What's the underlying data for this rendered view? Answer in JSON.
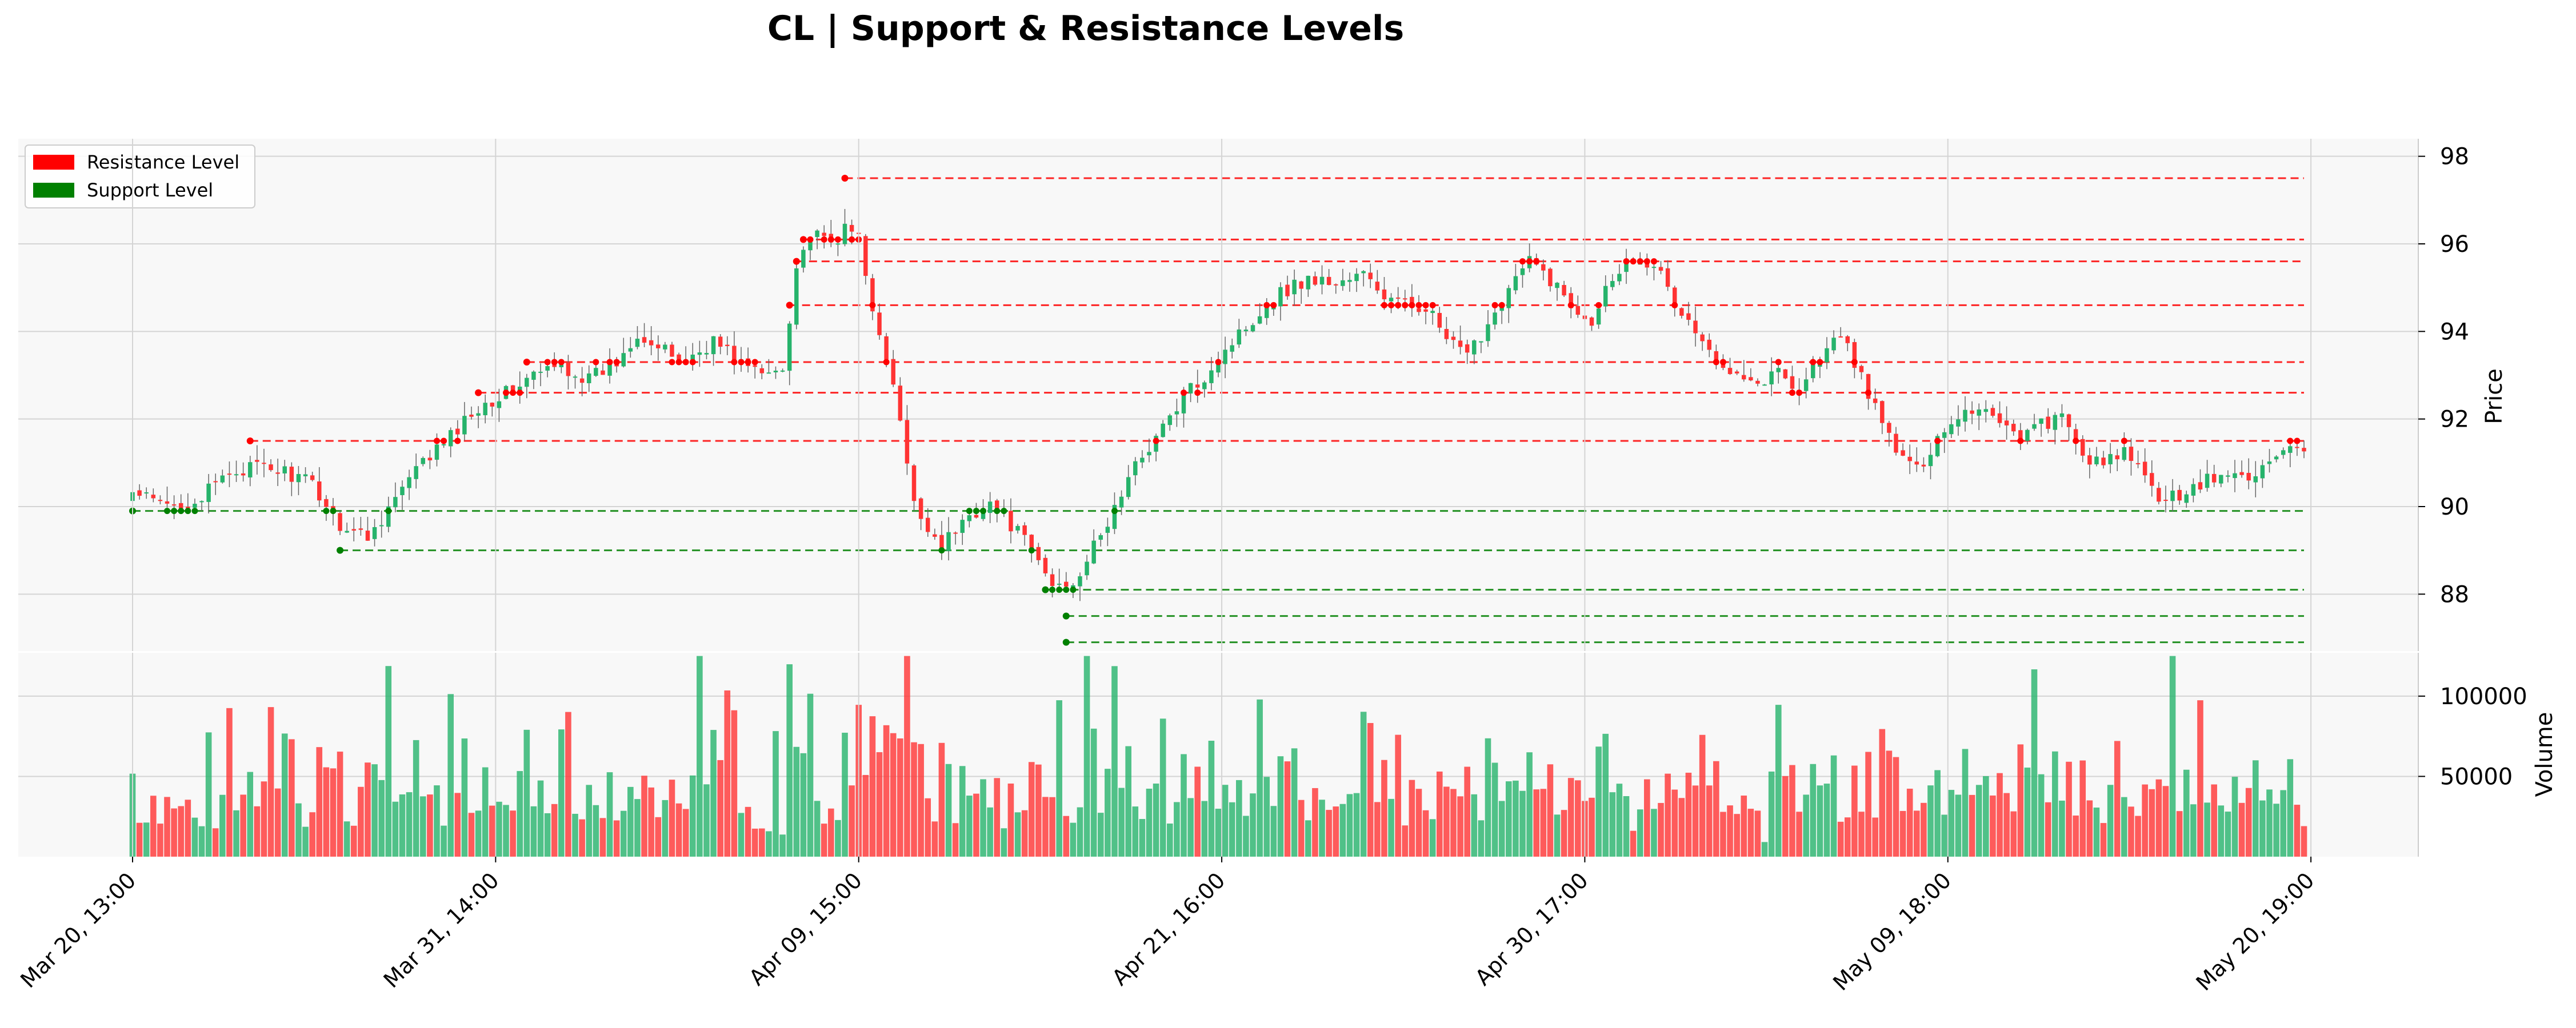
{
  "title": "CL | Support & Resistance Levels",
  "chart_data": [
    {
      "type": "candlestick",
      "panel": "price",
      "ylabel": "Price",
      "ylim": [
        86.7,
        98.4
      ],
      "yticks": [
        88,
        90,
        92,
        94,
        96,
        98
      ],
      "grid": true,
      "legend_placement": "top-left",
      "legend": [
        {
          "label": "Resistance Level",
          "color": "#ff0000"
        },
        {
          "label": "Support Level",
          "color": "#008000"
        }
      ],
      "xticks": [
        "Mar 20, 13:00",
        "Mar 31, 14:00",
        "Apr 09, 15:00",
        "Apr 21, 16:00",
        "Apr 30, 17:00",
        "May 09, 18:00",
        "May 20, 19:00"
      ],
      "bar_count": 315,
      "anchors": [
        [
          0,
          90.3
        ],
        [
          5,
          90.0
        ],
        [
          10,
          90.2
        ],
        [
          14,
          90.8
        ],
        [
          18,
          90.9
        ],
        [
          22,
          90.8
        ],
        [
          26,
          90.5
        ],
        [
          30,
          89.6
        ],
        [
          34,
          89.3
        ],
        [
          38,
          90.2
        ],
        [
          42,
          91.0
        ],
        [
          46,
          91.6
        ],
        [
          50,
          92.3
        ],
        [
          54,
          92.6
        ],
        [
          58,
          93.0
        ],
        [
          62,
          93.2
        ],
        [
          66,
          92.9
        ],
        [
          70,
          93.3
        ],
        [
          73,
          94.0
        ],
        [
          76,
          93.6
        ],
        [
          80,
          93.3
        ],
        [
          84,
          93.8
        ],
        [
          88,
          93.3
        ],
        [
          91,
          93.0
        ],
        [
          94,
          93.2
        ],
        [
          96,
          95.5
        ],
        [
          98,
          96.2
        ],
        [
          101,
          96.0
        ],
        [
          103,
          96.3
        ],
        [
          105,
          96.2
        ],
        [
          108,
          93.8
        ],
        [
          110,
          92.8
        ],
        [
          113,
          90.0
        ],
        [
          117,
          89.1
        ],
        [
          121,
          89.8
        ],
        [
          124,
          90.1
        ],
        [
          127,
          89.6
        ],
        [
          130,
          89.0
        ],
        [
          133,
          88.2
        ],
        [
          136,
          88.3
        ],
        [
          140,
          89.3
        ],
        [
          143,
          90.3
        ],
        [
          146,
          91.2
        ],
        [
          149,
          91.8
        ],
        [
          152,
          92.5
        ],
        [
          155,
          93.0
        ],
        [
          158,
          93.6
        ],
        [
          162,
          94.3
        ],
        [
          166,
          94.9
        ],
        [
          170,
          95.2
        ],
        [
          174,
          95.1
        ],
        [
          178,
          95.3
        ],
        [
          181,
          94.8
        ],
        [
          184,
          94.6
        ],
        [
          187,
          94.6
        ],
        [
          190,
          93.8
        ],
        [
          193,
          93.4
        ],
        [
          196,
          94.2
        ],
        [
          199,
          95.0
        ],
        [
          202,
          95.6
        ],
        [
          205,
          95.2
        ],
        [
          208,
          94.6
        ],
        [
          211,
          94.3
        ],
        [
          214,
          95.3
        ],
        [
          217,
          95.7
        ],
        [
          220,
          95.6
        ],
        [
          223,
          94.6
        ],
        [
          226,
          94.0
        ],
        [
          229,
          93.2
        ],
        [
          232,
          93.2
        ],
        [
          235,
          92.8
        ],
        [
          238,
          93.1
        ],
        [
          241,
          92.7
        ],
        [
          244,
          93.4
        ],
        [
          247,
          93.9
        ],
        [
          250,
          93.0
        ],
        [
          252,
          92.2
        ],
        [
          255,
          91.3
        ],
        [
          258,
          90.8
        ],
        [
          261,
          91.6
        ],
        [
          264,
          92.1
        ],
        [
          267,
          92.3
        ],
        [
          270,
          92.0
        ],
        [
          273,
          91.6
        ],
        [
          276,
          91.9
        ],
        [
          279,
          92.0
        ],
        [
          282,
          91.2
        ],
        [
          285,
          90.9
        ],
        [
          288,
          91.3
        ],
        [
          291,
          90.6
        ],
        [
          294,
          90.1
        ],
        [
          297,
          90.4
        ],
        [
          300,
          90.6
        ],
        [
          303,
          90.7
        ],
        [
          306,
          90.7
        ],
        [
          309,
          91.0
        ],
        [
          312,
          91.3
        ],
        [
          315,
          91.0
        ]
      ],
      "resistance_levels": [
        97.5,
        96.1,
        95.6,
        94.6,
        93.3,
        92.6,
        91.5
      ],
      "support_levels": [
        89.9,
        89.0,
        88.1,
        87.5,
        86.9
      ],
      "resistance_color": "#ff0000",
      "support_color": "#008000",
      "up_color": "#26b36b",
      "down_color": "#ff3333"
    },
    {
      "type": "bar",
      "panel": "volume",
      "ylabel": "Volume",
      "ylim": [
        0,
        127000
      ],
      "yticks": [
        50000,
        100000
      ],
      "ytick_labels": [
        "50000",
        "100000"
      ],
      "volume_range": [
        8000,
        125000
      ],
      "up_color": "#26b36b",
      "down_color": "#ff3333"
    }
  ]
}
